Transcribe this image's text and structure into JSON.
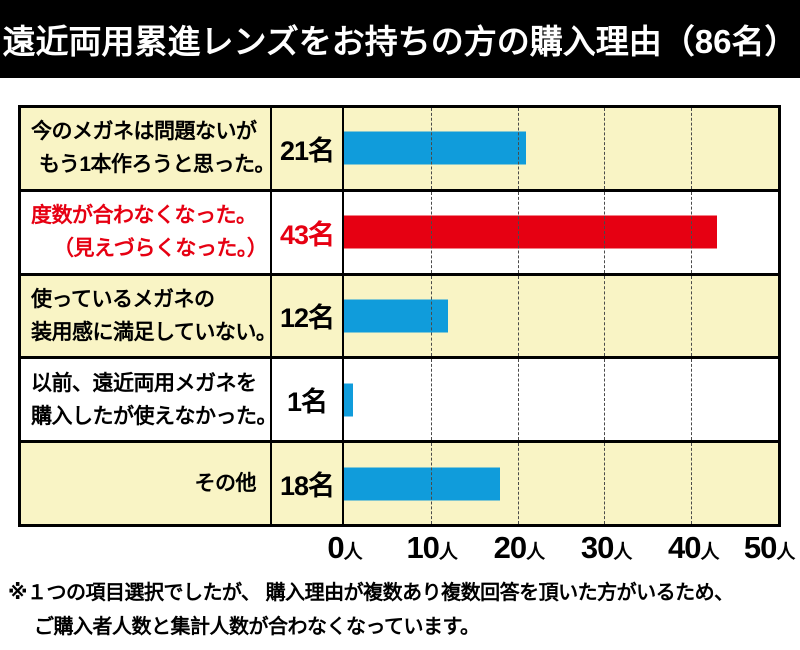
{
  "title": "遠近両用累進レンズをお持ちの方の購入理由（86名）",
  "chart_data": {
    "type": "bar",
    "orientation": "horizontal",
    "title": "遠近両用累進レンズをお持ちの方の購入理由（86名）",
    "total_respondents_label": "86名",
    "unit": "人",
    "xlim": [
      0,
      50
    ],
    "xticks": [
      0,
      10,
      20,
      30,
      40,
      50
    ],
    "grid": "dashed-vertical",
    "categories": [
      "今のメガネは問題ないが もう1本作ろうと思った。",
      "度数が合わなくなった。（見えづらくなった。）",
      "使っているメガネの 装用感に満足していない。",
      "以前、遠近両用メガネを 購入したが使えなかった。",
      "その他"
    ],
    "values": [
      21,
      43,
      12,
      1,
      18
    ],
    "rows": [
      {
        "label_lines": [
          "今のメガネは問題ないが",
          "もう1本作ろうと思った。"
        ],
        "value": 21,
        "count_label": "21名",
        "bar_color": "#109CDB",
        "text_color": "#000000",
        "row_bg": "#F9F4C5"
      },
      {
        "label_lines": [
          "度数が合わなくなった。",
          "（見えづらくなった。）"
        ],
        "value": 43,
        "count_label": "43名",
        "bar_color": "#E60012",
        "text_color": "#E60012",
        "row_bg": "#FFFFFF"
      },
      {
        "label_lines": [
          "使っているメガネの",
          "装用感に満足していない。"
        ],
        "value": 12,
        "count_label": "12名",
        "bar_color": "#109CDB",
        "text_color": "#000000",
        "row_bg": "#F9F4C5"
      },
      {
        "label_lines": [
          "以前、遠近両用メガネを",
          "購入したが使えなかった。"
        ],
        "value": 1,
        "count_label": "1名",
        "bar_color": "#109CDB",
        "text_color": "#000000",
        "row_bg": "#FFFFFF"
      },
      {
        "label_lines": [
          "その他"
        ],
        "value": 18,
        "count_label": "18名",
        "bar_color": "#109CDB",
        "text_color": "#000000",
        "row_bg": "#F9F4C5"
      }
    ]
  },
  "axis": {
    "ticks": [
      {
        "num": "0",
        "unit": "人"
      },
      {
        "num": "10",
        "unit": "人"
      },
      {
        "num": "20",
        "unit": "人"
      },
      {
        "num": "30",
        "unit": "人"
      },
      {
        "num": "40",
        "unit": "人"
      },
      {
        "num": "50",
        "unit": "人"
      }
    ]
  },
  "footnote": {
    "line1": "※１つの項目選択でしたが、 購入理由が複数あり複数回答を頂いた方がいるため、",
    "line2": "ご購入者人数と集計人数が合わなくなっています。"
  }
}
